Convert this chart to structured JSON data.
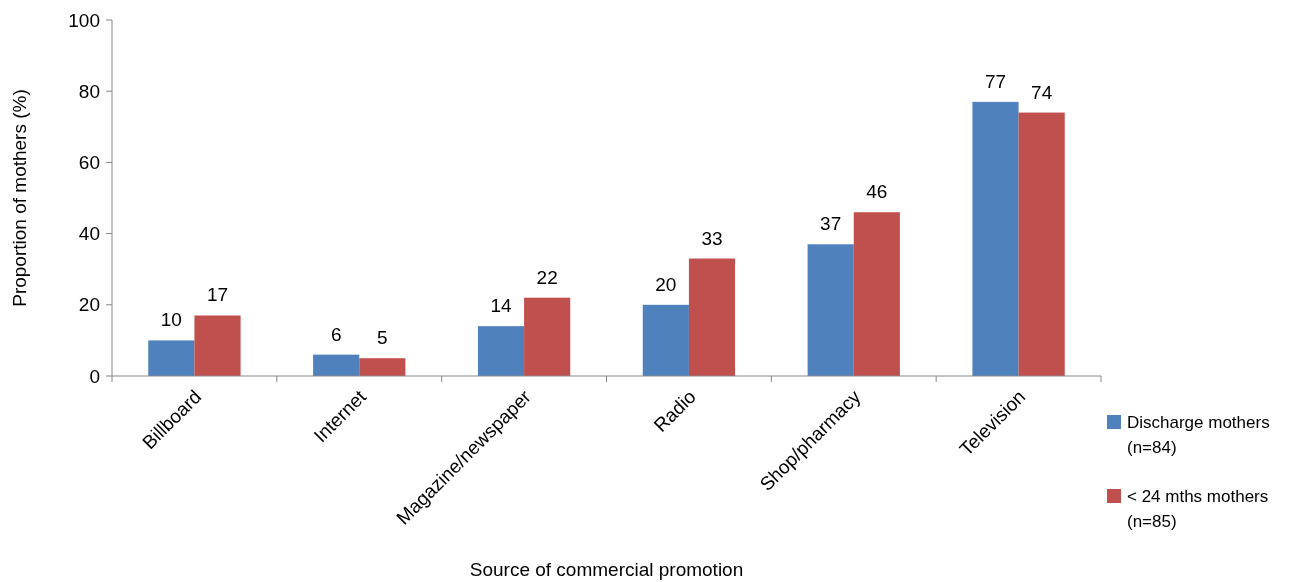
{
  "chart_data": {
    "type": "bar",
    "xlabel": "Source of commercial promotion",
    "ylabel": "Proportion of mothers (%)",
    "categories": [
      "Billboard",
      "Internet",
      "Magazine/newspaper",
      "Radio",
      "Shop/pharmacy",
      "Television"
    ],
    "series": [
      {
        "name": "Discharge mothers (n=84)",
        "color": "#4f81bd",
        "values": [
          10,
          6,
          14,
          20,
          37,
          77
        ]
      },
      {
        "name": "< 24 mths mothers (n=85)",
        "color": "#c0504d",
        "values": [
          17,
          5,
          22,
          33,
          46,
          74
        ]
      }
    ],
    "ylim": [
      0,
      100
    ],
    "yticks": [
      0,
      20,
      40,
      60,
      80,
      100
    ],
    "grid": false,
    "legend": "bottom right",
    "data_labels": true
  }
}
